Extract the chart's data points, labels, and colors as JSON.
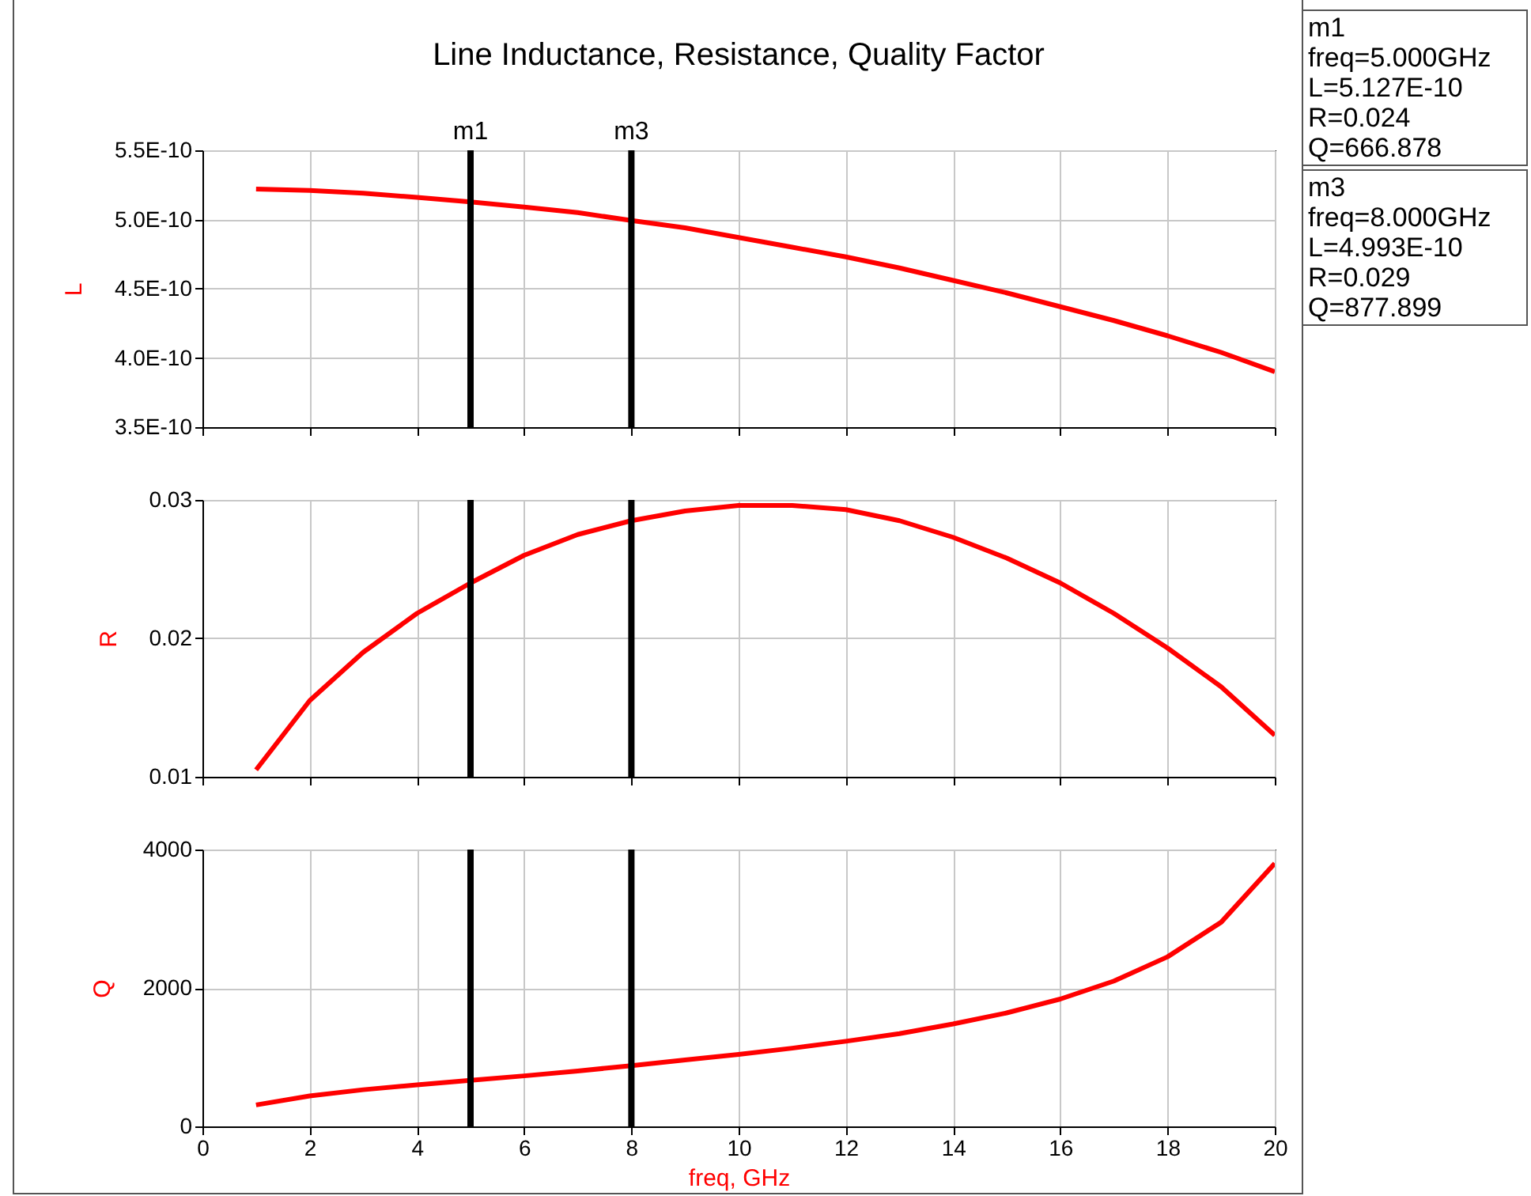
{
  "chart_data": [
    {
      "type": "line",
      "title": "Line Inductance, Resistance, Quality Factor",
      "ylabel": "L",
      "x": [
        1,
        2,
        3,
        4,
        5,
        6,
        7,
        8,
        9,
        10,
        11,
        12,
        13,
        14,
        15,
        16,
        17,
        18,
        19,
        20
      ],
      "series": [
        {
          "color": "#ff0000",
          "values": [
            5.22e-10,
            5.21e-10,
            5.19e-10,
            5.16e-10,
            5.127e-10,
            5.09e-10,
            5.05e-10,
            4.993e-10,
            4.94e-10,
            4.87e-10,
            4.8e-10,
            4.73e-10,
            4.65e-10,
            4.56e-10,
            4.47e-10,
            4.37e-10,
            4.27e-10,
            4.16e-10,
            4.04e-10,
            3.9e-10
          ]
        }
      ],
      "xlim": [
        0,
        20
      ],
      "xticks": [
        0,
        2,
        4,
        6,
        8,
        10,
        12,
        14,
        16,
        18,
        20
      ],
      "ylim": [
        3.5e-10,
        5.5e-10
      ],
      "yticks": [
        {
          "value": 3.5e-10,
          "label": "3.5E-10"
        },
        {
          "value": 4e-10,
          "label": "4.0E-10"
        },
        {
          "value": 4.5e-10,
          "label": "4.5E-10"
        },
        {
          "value": 5e-10,
          "label": "5.0E-10"
        },
        {
          "value": 5.5e-10,
          "label": "5.5E-10"
        }
      ],
      "grid": true,
      "tick_labels": "y",
      "ref_lines": [
        {
          "axis": "x",
          "value": 5,
          "label": "m1",
          "color": "#000000"
        },
        {
          "axis": "x",
          "value": 8,
          "label": "m3",
          "color": "#000000"
        }
      ],
      "annotations": [
        "m1\nfreq=5.000GHz\nL=5.127E-10\nR=0.024\nQ=666.878",
        "m3\nfreq=8.000GHz\nL=4.993E-10\nR=0.029\nQ=877.899"
      ]
    },
    {
      "type": "line",
      "ylabel": "R",
      "x": [
        1,
        2,
        3,
        4,
        5,
        6,
        7,
        8,
        9,
        10,
        11,
        12,
        13,
        14,
        15,
        16,
        17,
        18,
        19,
        20
      ],
      "series": [
        {
          "color": "#ff0000",
          "values": [
            0.0105,
            0.0155,
            0.019,
            0.0218,
            0.024,
            0.026,
            0.0275,
            0.0285,
            0.0292,
            0.0296,
            0.0296,
            0.0293,
            0.0285,
            0.0273,
            0.0258,
            0.024,
            0.0218,
            0.0193,
            0.0165,
            0.013
          ]
        }
      ],
      "xlim": [
        0,
        20
      ],
      "xticks": [
        0,
        2,
        4,
        6,
        8,
        10,
        12,
        14,
        16,
        18,
        20
      ],
      "ylim": [
        0.01,
        0.03
      ],
      "yticks": [
        0.01,
        0.02,
        0.03
      ],
      "grid": true,
      "tick_labels": "y",
      "ref_lines": [
        {
          "axis": "x",
          "value": 5,
          "color": "#000000"
        },
        {
          "axis": "x",
          "value": 8,
          "color": "#000000"
        }
      ]
    },
    {
      "type": "line",
      "ylabel": "Q",
      "xlabel": "freq, GHz",
      "x": [
        1,
        2,
        3,
        4,
        5,
        6,
        7,
        8,
        9,
        10,
        11,
        12,
        13,
        14,
        15,
        16,
        17,
        18,
        19,
        20
      ],
      "series": [
        {
          "color": "#ff0000",
          "values": [
            310,
            440,
            530,
            600,
            667,
            730,
            800,
            878,
            960,
            1040,
            1130,
            1230,
            1340,
            1480,
            1640,
            1840,
            2100,
            2450,
            2950,
            3800
          ]
        }
      ],
      "xlim": [
        0,
        20
      ],
      "xticks": [
        0,
        2,
        4,
        6,
        8,
        10,
        12,
        14,
        16,
        18,
        20
      ],
      "ylim": [
        0,
        4000
      ],
      "yticks": [
        0,
        2000,
        4000
      ],
      "grid": true,
      "ref_lines": [
        {
          "axis": "x",
          "value": 5,
          "color": "#000000"
        },
        {
          "axis": "x",
          "value": 8,
          "color": "#000000"
        }
      ]
    }
  ]
}
